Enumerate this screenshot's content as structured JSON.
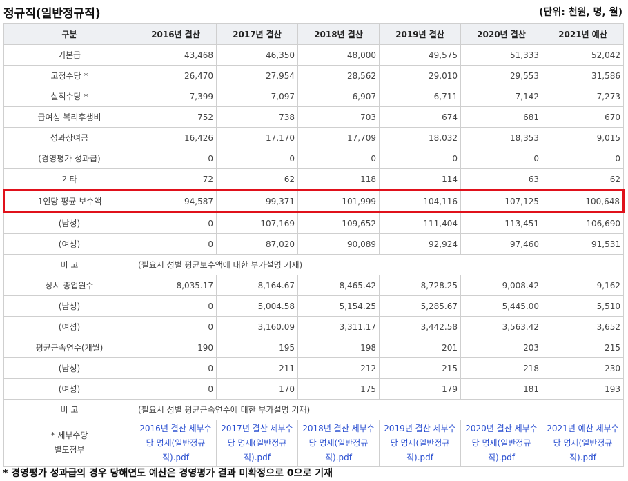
{
  "title": "정규직(일반정규직)",
  "unit": "(단위: 천원, 명, 월)",
  "columns": [
    "구분",
    "2016년 결산",
    "2017년 결산",
    "2018년 결산",
    "2019년 결산",
    "2020년 결산",
    "2021년 예산"
  ],
  "rows": [
    {
      "label": "기본급",
      "values": [
        "43,468",
        "46,350",
        "48,000",
        "49,575",
        "51,333",
        "52,042"
      ]
    },
    {
      "label": "고정수당 *",
      "values": [
        "26,470",
        "27,954",
        "28,562",
        "29,010",
        "29,553",
        "31,586"
      ]
    },
    {
      "label": "실적수당 *",
      "values": [
        "7,399",
        "7,097",
        "6,907",
        "6,711",
        "7,142",
        "7,273"
      ]
    },
    {
      "label": "급여성 복리후생비",
      "values": [
        "752",
        "738",
        "703",
        "674",
        "681",
        "670"
      ]
    },
    {
      "label": "성과상여금",
      "values": [
        "16,426",
        "17,170",
        "17,709",
        "18,032",
        "18,353",
        "9,015"
      ]
    },
    {
      "label": "(경영평가 성과급)",
      "values": [
        "0",
        "0",
        "0",
        "0",
        "0",
        "0"
      ]
    },
    {
      "label": "기타",
      "values": [
        "72",
        "62",
        "118",
        "114",
        "63",
        "62"
      ]
    },
    {
      "label": "1인당 평균 보수액",
      "values": [
        "94,587",
        "99,371",
        "101,999",
        "104,116",
        "107,125",
        "100,648"
      ]
    },
    {
      "label": "(남성)",
      "values": [
        "0",
        "107,169",
        "109,652",
        "111,404",
        "113,451",
        "106,690"
      ]
    },
    {
      "label": "(여성)",
      "values": [
        "0",
        "87,020",
        "90,089",
        "92,924",
        "97,460",
        "91,531"
      ]
    }
  ],
  "note1": {
    "label": "비 고",
    "text": "(필요시 성별 평균보수액에 대한 부가설명 기재)"
  },
  "rows2": [
    {
      "label": "상시 종업원수",
      "values": [
        "8,035.17",
        "8,164.67",
        "8,465.42",
        "8,728.25",
        "9,008.42",
        "9,162"
      ]
    },
    {
      "label": "(남성)",
      "values": [
        "0",
        "5,004.58",
        "5,154.25",
        "5,285.67",
        "5,445.00",
        "5,510"
      ]
    },
    {
      "label": "(여성)",
      "values": [
        "0",
        "3,160.09",
        "3,311.17",
        "3,442.58",
        "3,563.42",
        "3,652"
      ]
    },
    {
      "label": "평균근속연수(개월)",
      "values": [
        "190",
        "195",
        "198",
        "201",
        "203",
        "215"
      ]
    },
    {
      "label": "(남성)",
      "values": [
        "0",
        "211",
        "212",
        "215",
        "218",
        "230"
      ]
    },
    {
      "label": "(여성)",
      "values": [
        "0",
        "170",
        "175",
        "179",
        "181",
        "193"
      ]
    }
  ],
  "note2": {
    "label": "비 고",
    "text": "(필요시 성별 평균근속연수에 대한 부가설명 기재)"
  },
  "attach": {
    "label_line1": "* 세부수당",
    "label_line2": "별도첨부",
    "links": [
      "2016년 결산 세부수당 명세(일반정규직).pdf",
      "2017년 결산 세부수당 명세(일반정규직).pdf",
      "2018년 결산 세부수당 명세(일반정규직).pdf",
      "2019년 결산 세부수당 명세(일반정규직).pdf",
      "2020년 결산 세부수당 명세(일반정규직).pdf",
      "2021년 예산 세부수당 명세(일반정규직).pdf"
    ]
  },
  "footnote": "* 경영평가 성과급의 경우 당해연도 예산은 경영평가 결과 미확정으로 0으로 기재",
  "colors": {
    "highlight": "#e0111b",
    "link": "#2a4fd0",
    "header_bg": "#eef0f3"
  }
}
